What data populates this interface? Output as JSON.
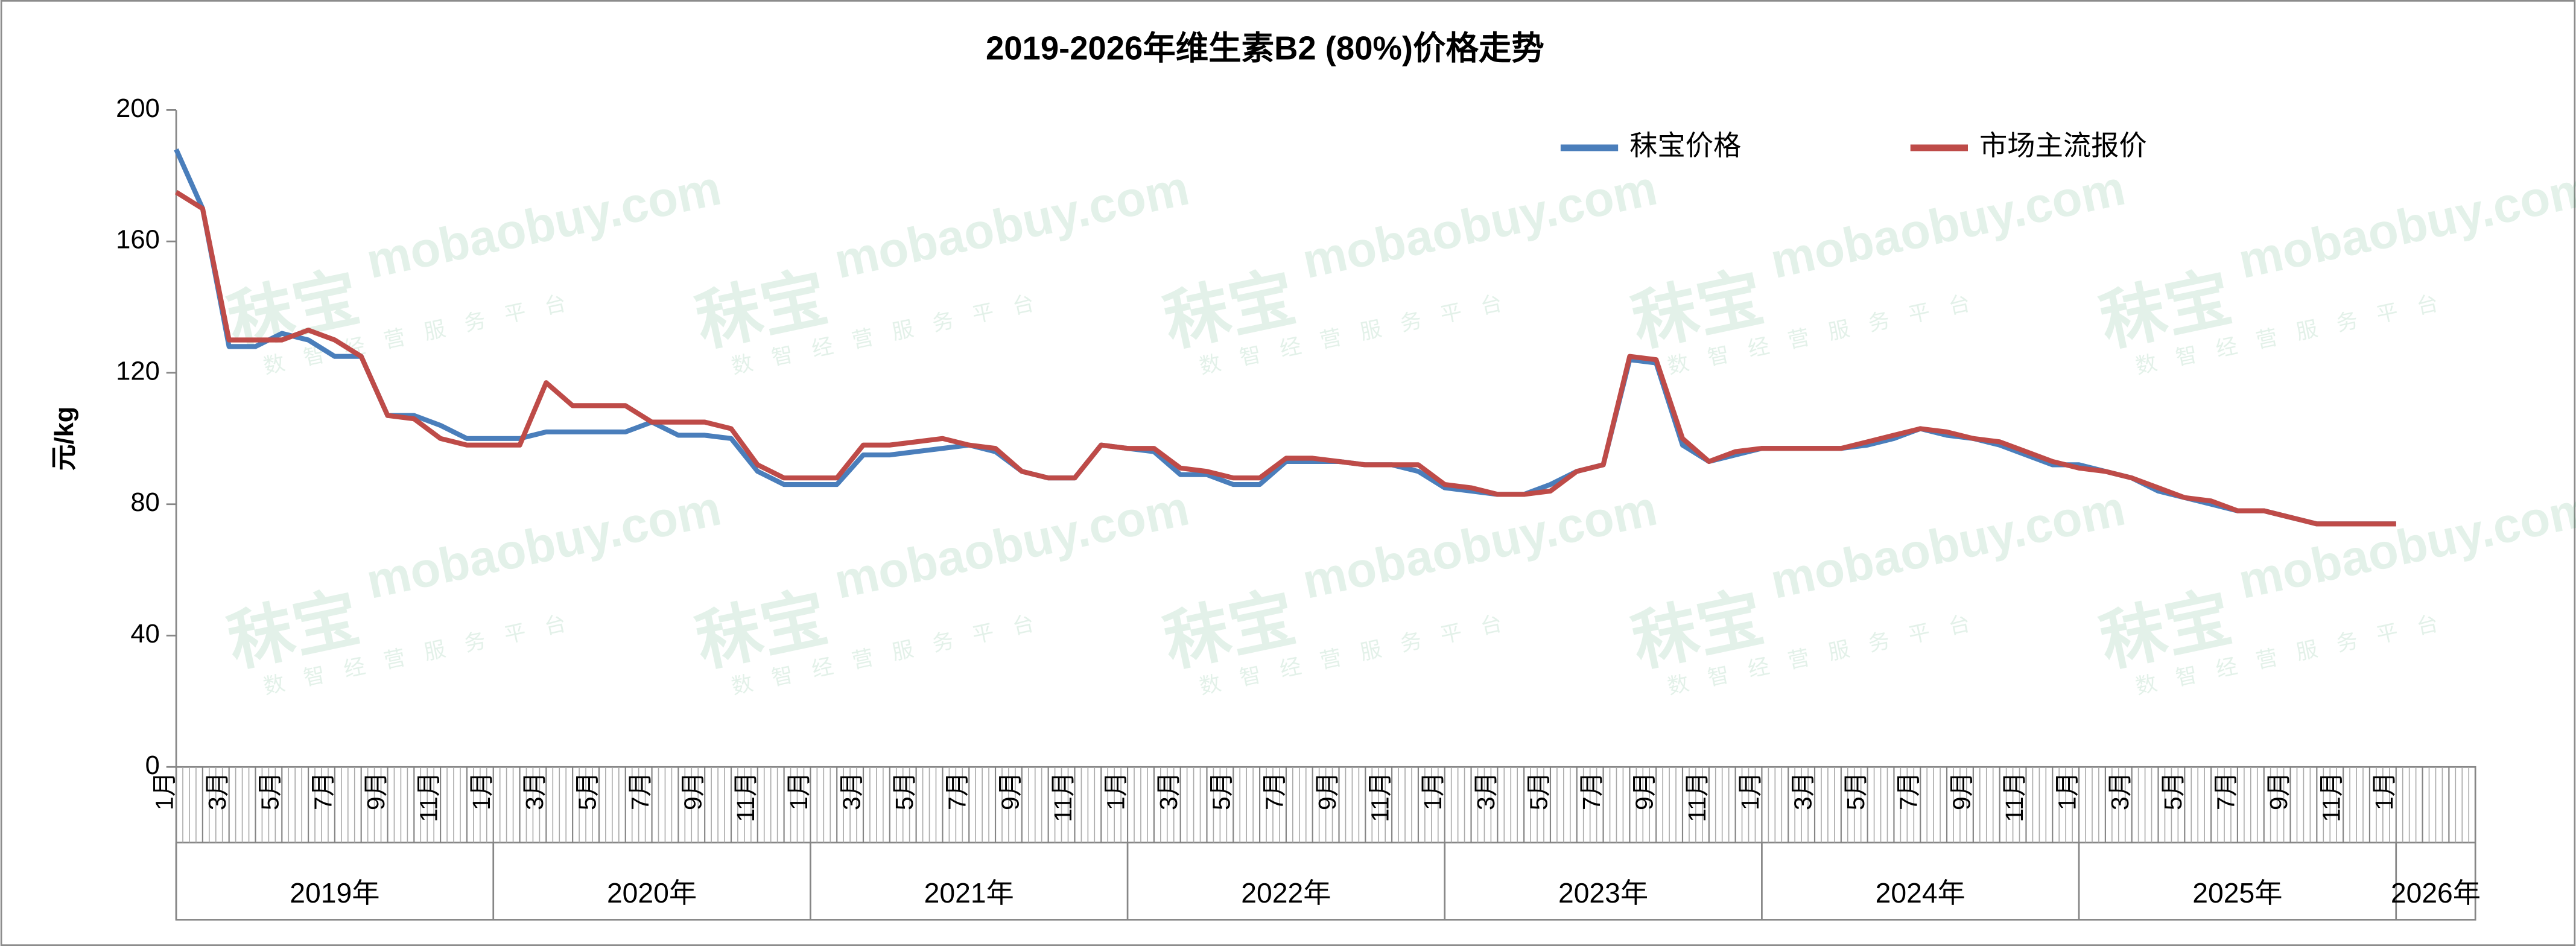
{
  "chart_data": {
    "type": "line",
    "title": "2019-2026年维生素B2 (80%)价格走势",
    "y_label": "元/kg",
    "watermark": {
      "brand": "秣宝",
      "site": "mobaobuy.com",
      "slogan": "数智经营服务平台"
    },
    "categories": [
      "1月",
      null,
      "3月",
      null,
      "5月",
      null,
      "7月",
      null,
      "9月",
      null,
      "11月",
      null,
      "1月",
      null,
      "3月",
      null,
      "5月",
      null,
      "7月",
      null,
      "9月",
      null,
      "11月",
      null,
      "1月",
      null,
      "3月",
      null,
      "5月",
      null,
      "7月",
      null,
      "9月",
      null,
      "11月",
      null,
      "1月",
      null,
      "3月",
      null,
      "5月",
      null,
      "7月",
      null,
      "9月",
      null,
      "11月",
      null,
      "1月",
      null,
      "3月",
      null,
      "5月",
      null,
      "7月",
      null,
      "9月",
      null,
      "11月",
      null,
      "1月",
      null,
      "3月",
      null,
      "5月",
      null,
      "7月",
      null,
      "9月",
      null,
      "11月",
      null,
      "1月",
      null,
      "3月",
      null,
      "5月",
      null,
      "7月",
      null,
      "9月",
      null,
      "11月",
      null,
      "1月",
      null,
      null
    ],
    "years": [
      "2019年",
      "2020年",
      "2021年",
      "2022年",
      "2023年",
      "2024年",
      "2025年",
      "2026年"
    ],
    "series": [
      {
        "name": "秣宝价格",
        "color": "#4a7ebb",
        "values": [
          188,
          170,
          128,
          128,
          132,
          130,
          125,
          125,
          107,
          107,
          104,
          100,
          100,
          100,
          102,
          102,
          102,
          102,
          105,
          101,
          101,
          100,
          90,
          86,
          86,
          86,
          95,
          95,
          96,
          97,
          98,
          96,
          90,
          88,
          88,
          98,
          97,
          96,
          89,
          89,
          86,
          86,
          93,
          93,
          93,
          92,
          92,
          90,
          85,
          84,
          83,
          83,
          86,
          90,
          92,
          124,
          123,
          98,
          93,
          95,
          97,
          97,
          97,
          97,
          98,
          100,
          103,
          101,
          100,
          98,
          95,
          92,
          92,
          90,
          88,
          84,
          82,
          80,
          78,
          78,
          76,
          74,
          74,
          74,
          74,
          null,
          null
        ]
      },
      {
        "name": "市场主流报价",
        "color": "#be4b48",
        "values": [
          175,
          170,
          130,
          130,
          130,
          133,
          130,
          125,
          107,
          106,
          100,
          98,
          98,
          98,
          117,
          110,
          110,
          110,
          105,
          105,
          105,
          103,
          92,
          88,
          88,
          88,
          98,
          98,
          99,
          100,
          98,
          97,
          90,
          88,
          88,
          98,
          97,
          97,
          91,
          90,
          88,
          88,
          94,
          94,
          93,
          92,
          92,
          92,
          86,
          85,
          83,
          83,
          84,
          90,
          92,
          125,
          124,
          100,
          93,
          96,
          97,
          97,
          97,
          97,
          99,
          101,
          103,
          102,
          100,
          99,
          96,
          93,
          91,
          90,
          88,
          85,
          82,
          81,
          78,
          78,
          76,
          74,
          74,
          74,
          74,
          null,
          null
        ]
      }
    ],
    "ylim": [
      0,
      200
    ],
    "yticks": [
      0,
      40,
      80,
      120,
      160,
      200
    ],
    "grid": false,
    "legend": "top-right"
  }
}
